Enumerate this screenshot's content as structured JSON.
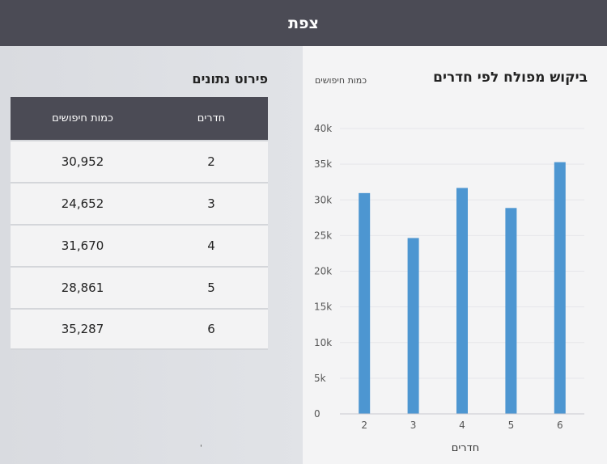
{
  "header": {
    "city": "צפת"
  },
  "chart": {
    "title": "ביקוש מפולח לפי חדרים",
    "legend": "כמות חיפושים",
    "bar_color": "#4d96d1"
  },
  "chart_data": {
    "type": "bar",
    "title": "ביקוש מפולח לפי חדרים",
    "xlabel": "חדרים",
    "ylabel": "",
    "categories": [
      "2",
      "3",
      "4",
      "5",
      "6"
    ],
    "series": [
      {
        "name": "כמות חיפושים",
        "values": [
          30952,
          24652,
          31670,
          28861,
          35287
        ]
      }
    ],
    "ylim": [
      0,
      40000
    ],
    "yticks": [
      "0",
      "5k",
      "10k",
      "15k",
      "20k",
      "25k",
      "30k",
      "35k",
      "40k"
    ],
    "grid": true
  },
  "table": {
    "title": "פירוט נתונים",
    "headers": {
      "rooms": "חדרים",
      "searches": "כמות חיפושים"
    },
    "rows": [
      {
        "rooms": "2",
        "searches": "30,952"
      },
      {
        "rooms": "3",
        "searches": "24,652"
      },
      {
        "rooms": "4",
        "searches": "31,670"
      },
      {
        "rooms": "5",
        "searches": "28,861"
      },
      {
        "rooms": "6",
        "searches": "35,287"
      }
    ]
  },
  "footer": {
    "mark": "'"
  }
}
